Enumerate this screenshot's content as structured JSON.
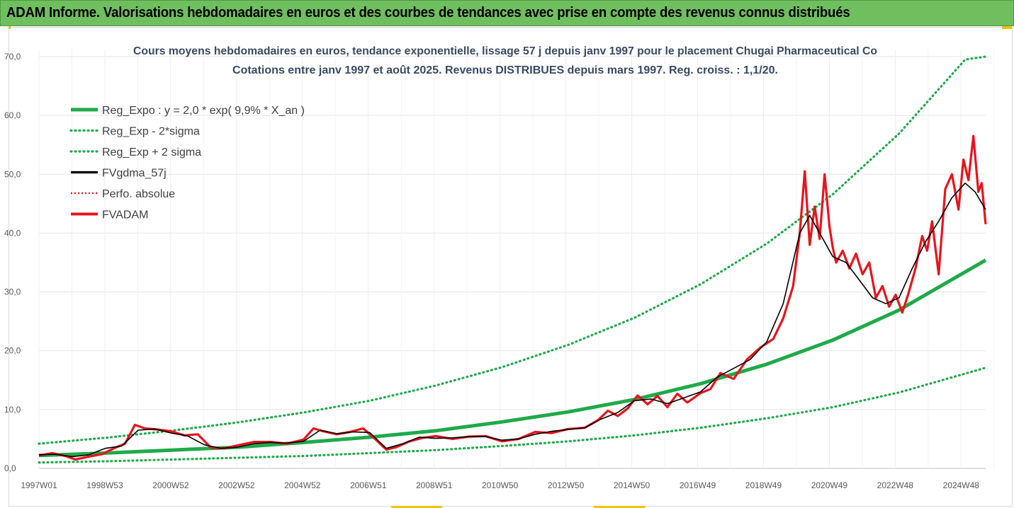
{
  "banner": {
    "text": "ADAM Informe. Valorisations hebdomadaires en euros et des courbes de tendances avec prise en compte des revenus connus distribués"
  },
  "colors": {
    "banner_bg": "#6fbf5e",
    "trend_green": "#1faa4a",
    "price_red": "#e8141c",
    "smooth_black": "#000000",
    "accent_yellow": "#f4c400"
  },
  "chart_data": {
    "type": "line",
    "title": "Cours moyens hebdomadaires en euros, tendance exponentielle, lissage 57 j depuis janv 1997 pour le placement Chugai Pharmaceutical Co",
    "subtitle": "Cotations entre janv 1997 et août 2025.  Revenus DISTRIBUES depuis mars 1997. Reg. croiss. : 1,1/20.",
    "x_tick_labels": [
      "1997W01",
      "1998W53",
      "2000W52",
      "2002W52",
      "2004W52",
      "2006W51",
      "2008W51",
      "2010W50",
      "2012W50",
      "2014W50",
      "2016W49",
      "2018W49",
      "2020W49",
      "2022W48",
      "2024W48"
    ],
    "x_range": [
      1997.0,
      2025.62
    ],
    "y_tick_labels": [
      "0,0",
      "10,0",
      "20,0",
      "30,0",
      "40,0",
      "50,0",
      "60,0",
      "70,0"
    ],
    "ylim": [
      0,
      70
    ],
    "grid": "horizontal and vertical",
    "legend_position": "top-left",
    "legend": [
      {
        "key": "reg",
        "label": "Reg_Expo : y = 2,0 * exp( 9,9% *  X_an )"
      },
      {
        "key": "low",
        "label": "Reg_Exp - 2*sigma"
      },
      {
        "key": "high",
        "label": "Reg_Exp + 2 sigma"
      },
      {
        "key": "gdma",
        "label": "FVgdma_57j"
      },
      {
        "key": "perf",
        "label": "Perfo. absolue"
      },
      {
        "key": "fvadam",
        "label": "FVADAM"
      }
    ],
    "series": [
      {
        "key": "reg",
        "name": "Reg_Expo : y = 2,0 * exp( 9,9% *  X_an )",
        "style": "solid-thick",
        "color": "#1faa4a",
        "x": [
          1997.0,
          1999.0,
          2001.0,
          2003.0,
          2005.0,
          2007.0,
          2009.0,
          2011.0,
          2013.0,
          2015.0,
          2017.0,
          2019.0,
          2021.0,
          2023.0,
          2025.62
        ],
        "y": [
          2.2,
          2.6,
          3.1,
          3.6,
          4.4,
          5.3,
          6.4,
          7.9,
          9.6,
          11.7,
          14.4,
          17.7,
          21.8,
          26.9,
          35.4
        ]
      },
      {
        "key": "low",
        "name": "Reg_Exp - 2*sigma",
        "style": "dotted",
        "color": "#1faa4a",
        "x": [
          1997.0,
          1999.0,
          2001.0,
          2003.0,
          2005.0,
          2007.0,
          2009.0,
          2011.0,
          2013.0,
          2015.0,
          2017.0,
          2019.0,
          2021.0,
          2023.0,
          2025.62
        ],
        "y": [
          1.0,
          1.2,
          1.5,
          1.8,
          2.1,
          2.6,
          3.1,
          3.8,
          4.6,
          5.6,
          6.9,
          8.5,
          10.4,
          12.9,
          17.1
        ]
      },
      {
        "key": "high",
        "name": "Reg_Exp + 2 sigma",
        "style": "dotted",
        "color": "#1faa4a",
        "x": [
          1997.0,
          1999.0,
          2001.0,
          2003.0,
          2005.0,
          2007.0,
          2009.0,
          2011.0,
          2013.0,
          2015.0,
          2017.0,
          2019.0,
          2021.0,
          2023.0,
          2025.0,
          2025.62
        ],
        "y": [
          4.2,
          5.2,
          6.4,
          7.8,
          9.5,
          11.5,
          14.1,
          17.2,
          21.0,
          25.6,
          31.3,
          38.2,
          46.6,
          56.9,
          69.5,
          70.0
        ]
      },
      {
        "key": "gdma",
        "name": "FVgdma_57j",
        "style": "solid",
        "color": "#000000",
        "x": [
          1997.0,
          1997.5,
          1998.0,
          1998.5,
          1999.0,
          1999.5,
          2000.0,
          2000.5,
          2001.0,
          2001.5,
          2002.0,
          2002.5,
          2003.0,
          2003.5,
          2004.0,
          2004.5,
          2005.0,
          2005.5,
          2006.0,
          2006.5,
          2007.0,
          2007.5,
          2008.0,
          2008.5,
          2009.0,
          2009.5,
          2010.0,
          2010.5,
          2011.0,
          2011.5,
          2012.0,
          2012.5,
          2013.0,
          2013.5,
          2014.0,
          2014.5,
          2015.0,
          2015.5,
          2016.0,
          2016.5,
          2017.0,
          2017.5,
          2018.0,
          2018.5,
          2019.0,
          2019.5,
          2020.0,
          2020.3,
          2020.6,
          2021.0,
          2021.4,
          2021.8,
          2022.2,
          2022.6,
          2023.0,
          2023.4,
          2023.8,
          2024.2,
          2024.6,
          2025.0,
          2025.3,
          2025.62
        ],
        "y": [
          2.3,
          2.4,
          2.0,
          2.3,
          3.4,
          3.8,
          6.5,
          6.7,
          6.0,
          5.5,
          4.0,
          3.4,
          3.6,
          4.2,
          4.4,
          4.3,
          4.6,
          6.5,
          5.9,
          6.2,
          6.1,
          3.4,
          4.2,
          5.3,
          5.1,
          5.2,
          5.4,
          5.4,
          4.8,
          5.0,
          5.8,
          6.3,
          6.6,
          6.9,
          8.4,
          9.5,
          11.5,
          11.8,
          11.0,
          12.0,
          13.0,
          15.5,
          17.0,
          18.5,
          21.5,
          28.0,
          40.0,
          43.0,
          40.0,
          36.0,
          35.0,
          32.0,
          29.0,
          28.0,
          29.0,
          34.0,
          38.5,
          42.0,
          46.0,
          48.5,
          47.0,
          44.0
        ]
      },
      {
        "key": "fvadam",
        "name": "FVADAM",
        "style": "solid-thick",
        "color": "#e8141c",
        "x": [
          1997.0,
          1997.4,
          1997.8,
          1998.1,
          1998.5,
          1998.9,
          1999.3,
          1999.6,
          1999.9,
          2000.2,
          2000.6,
          2001.0,
          2001.4,
          2001.8,
          2002.2,
          2002.6,
          2003.0,
          2003.5,
          2004.0,
          2004.5,
          2005.0,
          2005.3,
          2005.6,
          2006.0,
          2006.4,
          2006.8,
          2007.2,
          2007.5,
          2007.8,
          2008.2,
          2008.6,
          2009.0,
          2009.5,
          2010.0,
          2010.5,
          2011.0,
          2011.5,
          2012.0,
          2012.5,
          2013.0,
          2013.5,
          2013.9,
          2014.2,
          2014.5,
          2014.8,
          2015.1,
          2015.4,
          2015.7,
          2016.0,
          2016.3,
          2016.6,
          2017.0,
          2017.3,
          2017.6,
          2018.0,
          2018.4,
          2018.8,
          2019.2,
          2019.5,
          2019.8,
          2020.0,
          2020.15,
          2020.3,
          2020.45,
          2020.6,
          2020.75,
          2020.9,
          2021.0,
          2021.1,
          2021.3,
          2021.5,
          2021.7,
          2021.9,
          2022.1,
          2022.3,
          2022.5,
          2022.7,
          2022.9,
          2023.1,
          2023.3,
          2023.5,
          2023.7,
          2023.85,
          2024.0,
          2024.2,
          2024.4,
          2024.6,
          2024.8,
          2024.95,
          2025.1,
          2025.25,
          2025.4,
          2025.5,
          2025.62
        ],
        "y": [
          2.2,
          2.6,
          2.1,
          1.5,
          2.0,
          2.4,
          3.5,
          4.2,
          7.4,
          6.8,
          6.6,
          6.3,
          5.6,
          5.8,
          3.5,
          3.4,
          3.9,
          4.5,
          4.5,
          4.2,
          4.9,
          6.8,
          6.3,
          5.8,
          6.2,
          6.8,
          4.8,
          3.2,
          3.6,
          4.6,
          5.2,
          5.5,
          5.0,
          5.4,
          5.5,
          4.6,
          5.0,
          6.2,
          6.0,
          6.7,
          6.9,
          8.2,
          9.8,
          8.9,
          10.2,
          12.4,
          10.9,
          12.3,
          10.4,
          12.7,
          11.2,
          12.8,
          13.5,
          16.2,
          15.2,
          18.5,
          20.5,
          22.0,
          25.5,
          31.0,
          40.0,
          50.5,
          38.0,
          44.5,
          39.0,
          50.0,
          41.0,
          37.5,
          35.0,
          37.0,
          34.0,
          36.5,
          33.0,
          35.0,
          29.0,
          31.0,
          27.5,
          29.5,
          26.5,
          30.0,
          34.0,
          39.5,
          37.0,
          42.0,
          33.0,
          47.5,
          50.0,
          44.0,
          52.5,
          49.0,
          56.5,
          47.0,
          48.5,
          41.5
        ]
      }
    ]
  }
}
